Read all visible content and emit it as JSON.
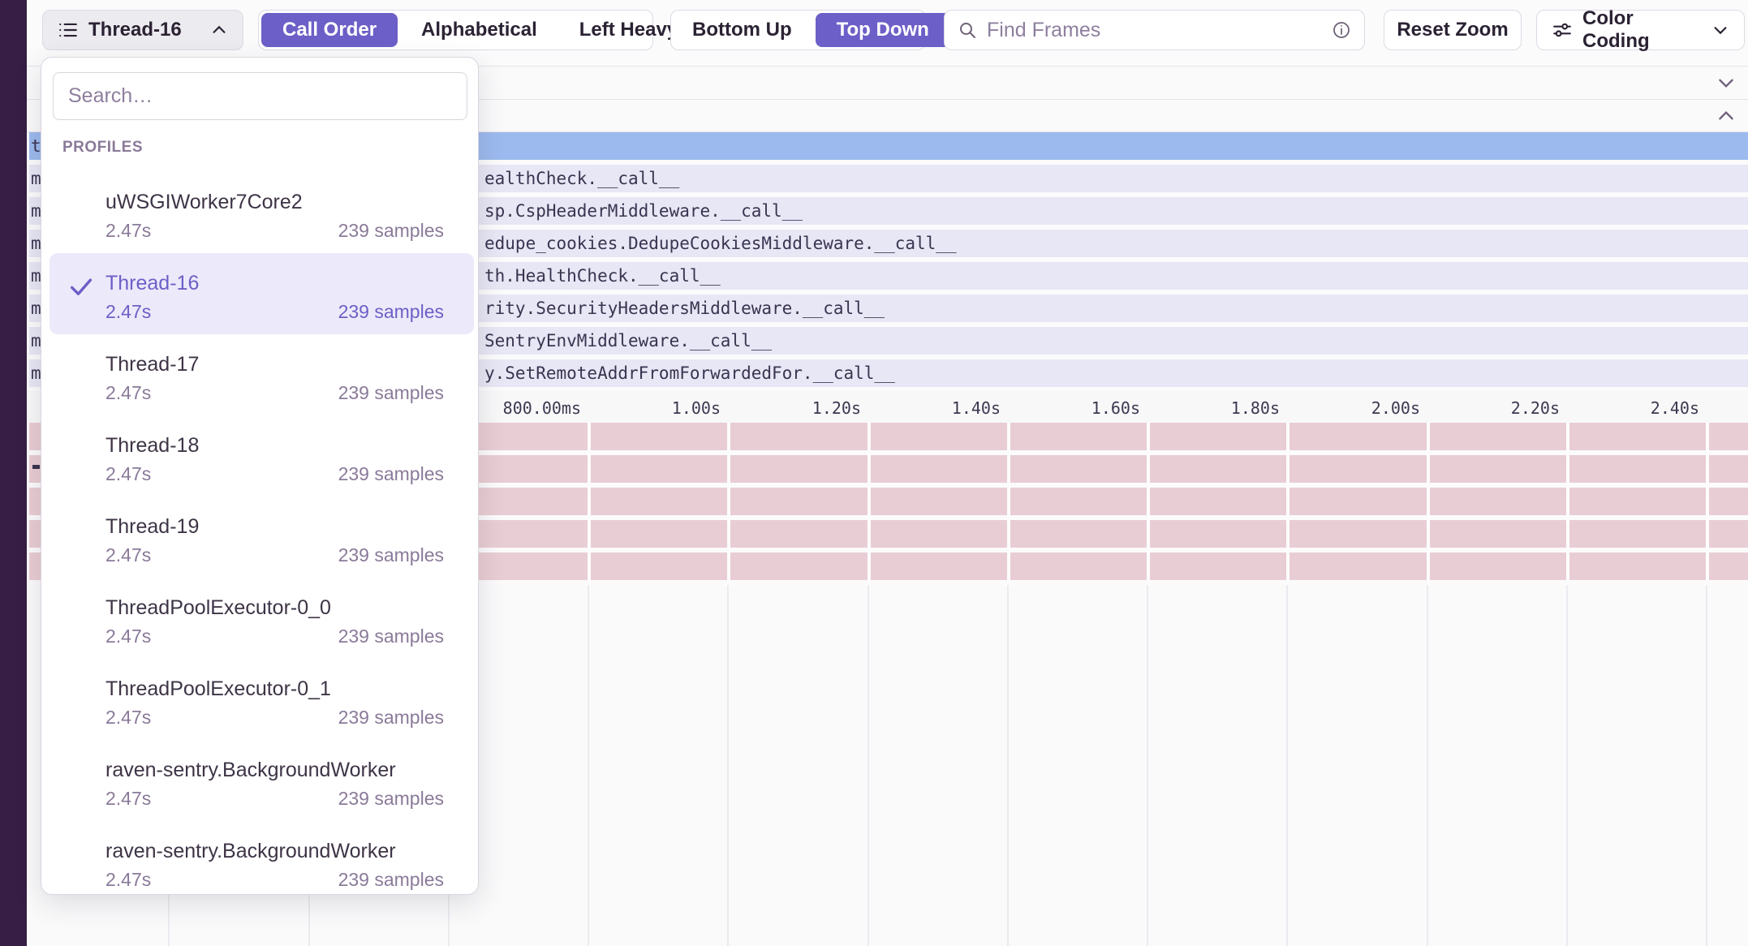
{
  "colors": {
    "accent": "#6C5FC7",
    "rail": "#361E44",
    "selected_frame": "#9CBAEE",
    "frame": "#E7E7F5",
    "system_frame": "#E9CDD4",
    "selected_item_bg": "#ECE9FA"
  },
  "toolbar": {
    "thread_selector": {
      "label": "Thread-16"
    },
    "sort_segments": {
      "options": [
        "Call Order",
        "Alphabetical",
        "Left Heavy"
      ],
      "active": "Call Order"
    },
    "direction_segments": {
      "options": [
        "Bottom Up",
        "Top Down"
      ],
      "active": "Top Down"
    },
    "search": {
      "placeholder": "Find Frames"
    },
    "reset_zoom_label": "Reset Zoom",
    "color_coding_label": "Color Coding"
  },
  "dropdown": {
    "search_placeholder": "Search…",
    "section_label": "PROFILES",
    "items": [
      {
        "name": "uWSGIWorker7Core2",
        "duration": "2.47s",
        "samples": "239 samples",
        "selected": false
      },
      {
        "name": "Thread-16",
        "duration": "2.47s",
        "samples": "239 samples",
        "selected": true
      },
      {
        "name": "Thread-17",
        "duration": "2.47s",
        "samples": "239 samples",
        "selected": false
      },
      {
        "name": "Thread-18",
        "duration": "2.47s",
        "samples": "239 samples",
        "selected": false
      },
      {
        "name": "Thread-19",
        "duration": "2.47s",
        "samples": "239 samples",
        "selected": false
      },
      {
        "name": "ThreadPoolExecutor-0_0",
        "duration": "2.47s",
        "samples": "239 samples",
        "selected": false
      },
      {
        "name": "ThreadPoolExecutor-0_1",
        "duration": "2.47s",
        "samples": "239 samples",
        "selected": false
      },
      {
        "name": "raven-sentry.BackgroundWorker",
        "duration": "2.47s",
        "samples": "239 samples",
        "selected": false
      },
      {
        "name": "raven-sentry.BackgroundWorker",
        "duration": "2.47s",
        "samples": "239 samples",
        "selected": false
      }
    ]
  },
  "flamegraph": {
    "rows": [
      {
        "left": "t",
        "label": "",
        "highlighted": true
      },
      {
        "left": "m",
        "label": "ealthCheck.__call__",
        "highlighted": false
      },
      {
        "left": "m",
        "label": "sp.CspHeaderMiddleware.__call__",
        "highlighted": false
      },
      {
        "left": "m",
        "label": "edupe_cookies.DedupeCookiesMiddleware.__call__",
        "highlighted": false
      },
      {
        "left": "m",
        "label": "th.HealthCheck.__call__",
        "highlighted": false
      },
      {
        "left": "m",
        "label": "rity.SecurityHeadersMiddleware.__call__",
        "highlighted": false
      },
      {
        "left": "m",
        "label": "SentryEnvMiddleware.__call__",
        "highlighted": false
      },
      {
        "left": "m",
        "label": "y.SetRemoteAddrFromForwardedFor.__call__",
        "highlighted": false
      }
    ],
    "axis_ticks": [
      "800.00ms",
      "1.00s",
      "1.20s",
      "1.40s",
      "1.60s",
      "1.80s",
      "2.00s",
      "2.20s",
      "2.40s"
    ],
    "system_row_count": 5
  }
}
